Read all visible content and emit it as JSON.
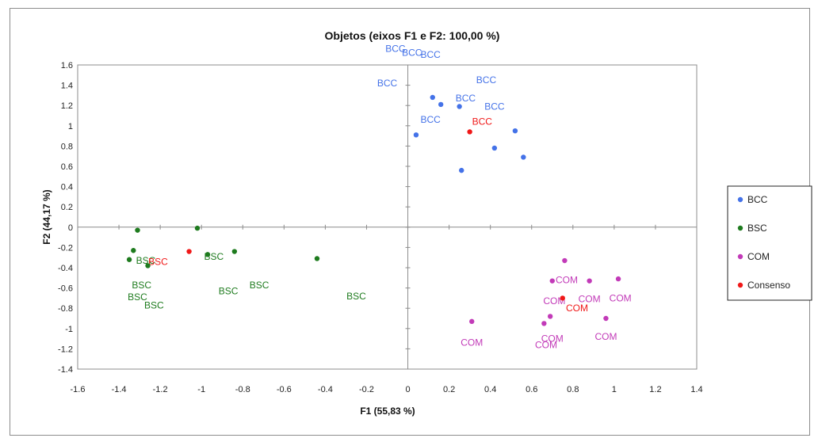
{
  "chart_data": {
    "type": "scatter",
    "title": "Objetos (eixos F1 e F2: 100,00 %)",
    "xlabel": "F1 (55,83 %)",
    "ylabel": "F2 (44,17 %)",
    "xlim": [
      -1.6,
      1.4
    ],
    "ylim": [
      -1.4,
      1.6
    ],
    "xticks": [
      -1.6,
      -1.4,
      -1.2,
      -1,
      -0.8,
      -0.6,
      -0.4,
      -0.2,
      0,
      0.2,
      0.4,
      0.6,
      0.8,
      1,
      1.2,
      1.4
    ],
    "yticks": [
      -1.4,
      -1.2,
      -1,
      -0.8,
      -0.6,
      -0.4,
      -0.2,
      0,
      0.2,
      0.4,
      0.6,
      0.8,
      1,
      1.2,
      1.4,
      1.6
    ],
    "xtick_labels": [
      "-1.6",
      "-1.4",
      "-1.2",
      "-1",
      "-0.8",
      "-0.6",
      "-0.4",
      "-0.2",
      "0",
      "0.2",
      "0.4",
      "0.6",
      "0.8",
      "1",
      "1.2",
      "1.4"
    ],
    "ytick_labels": [
      "-1.4",
      "-1.2",
      "-1",
      "-0.8",
      "-0.6",
      "-0.4",
      "-0.2",
      "0",
      "0.2",
      "0.4",
      "0.6",
      "0.8",
      "1",
      "1.2",
      "1.4",
      "1.6"
    ],
    "grid": false,
    "legend_position": "right",
    "series": [
      {
        "name": "BCC",
        "color": "#4472e8",
        "points": [
          {
            "x": 0.12,
            "y": 1.28
          },
          {
            "x": 0.16,
            "y": 1.21
          },
          {
            "x": 0.25,
            "y": 1.19
          },
          {
            "x": 0.52,
            "y": 0.95
          },
          {
            "x": 0.04,
            "y": 0.91
          },
          {
            "x": 0.42,
            "y": 0.78
          },
          {
            "x": 0.56,
            "y": 0.69
          },
          {
            "x": 0.26,
            "y": 0.56
          }
        ],
        "labels": [
          {
            "text": "BCC",
            "x": -0.06,
            "y": 1.76
          },
          {
            "text": "BCC",
            "x": 0.02,
            "y": 1.72
          },
          {
            "text": "BCC",
            "x": 0.11,
            "y": 1.7
          },
          {
            "text": "BCC",
            "x": -0.1,
            "y": 1.42
          },
          {
            "text": "BCC",
            "x": 0.38,
            "y": 1.45
          },
          {
            "text": "BCC",
            "x": 0.28,
            "y": 1.27
          },
          {
            "text": "BCC",
            "x": 0.42,
            "y": 1.19
          },
          {
            "text": "BCC",
            "x": 0.11,
            "y": 1.06
          }
        ]
      },
      {
        "name": "BSC",
        "color": "#1e7b1e",
        "points": [
          {
            "x": -1.31,
            "y": -0.03
          },
          {
            "x": -1.02,
            "y": -0.01
          },
          {
            "x": -1.33,
            "y": -0.23
          },
          {
            "x": -1.35,
            "y": -0.32
          },
          {
            "x": -1.26,
            "y": -0.38
          },
          {
            "x": -0.97,
            "y": -0.27
          },
          {
            "x": -0.84,
            "y": -0.24
          },
          {
            "x": -0.44,
            "y": -0.31
          }
        ],
        "labels": [
          {
            "text": "BSC",
            "x": -1.27,
            "y": -0.33
          },
          {
            "text": "BSC",
            "x": -0.94,
            "y": -0.29
          },
          {
            "text": "BSC",
            "x": -1.29,
            "y": -0.57
          },
          {
            "text": "BSC",
            "x": -1.31,
            "y": -0.69
          },
          {
            "text": "BSC",
            "x": -1.23,
            "y": -0.77
          },
          {
            "text": "BSC",
            "x": -0.87,
            "y": -0.63
          },
          {
            "text": "BSC",
            "x": -0.72,
            "y": -0.57
          },
          {
            "text": "BSC",
            "x": -0.25,
            "y": -0.68
          }
        ]
      },
      {
        "name": "COM",
        "color": "#c23ab8",
        "points": [
          {
            "x": 0.76,
            "y": -0.33
          },
          {
            "x": 0.7,
            "y": -0.53
          },
          {
            "x": 0.88,
            "y": -0.53
          },
          {
            "x": 1.02,
            "y": -0.51
          },
          {
            "x": 0.69,
            "y": -0.88
          },
          {
            "x": 0.66,
            "y": -0.95
          },
          {
            "x": 0.96,
            "y": -0.9
          },
          {
            "x": 0.31,
            "y": -0.93
          }
        ],
        "labels": [
          {
            "text": "COM",
            "x": 0.77,
            "y": -0.52
          },
          {
            "text": "COM",
            "x": 0.71,
            "y": -0.73
          },
          {
            "text": "COM",
            "x": 0.88,
            "y": -0.71
          },
          {
            "text": "COM",
            "x": 1.03,
            "y": -0.7
          },
          {
            "text": "COM",
            "x": 0.7,
            "y": -1.1
          },
          {
            "text": "COM",
            "x": 0.67,
            "y": -1.16
          },
          {
            "text": "COM",
            "x": 0.96,
            "y": -1.08
          },
          {
            "text": "COM",
            "x": 0.31,
            "y": -1.14
          }
        ]
      },
      {
        "name": "Consenso",
        "color": "#f01818",
        "points": [
          {
            "x": 0.3,
            "y": 0.94
          },
          {
            "x": -1.06,
            "y": -0.24
          },
          {
            "x": 0.75,
            "y": -0.7
          }
        ],
        "labels": [
          {
            "text": "BCC",
            "x": 0.36,
            "y": 1.04
          },
          {
            "text": "BSC",
            "x": -1.21,
            "y": -0.34
          },
          {
            "text": "COM",
            "x": 0.82,
            "y": -0.8
          }
        ]
      }
    ]
  }
}
